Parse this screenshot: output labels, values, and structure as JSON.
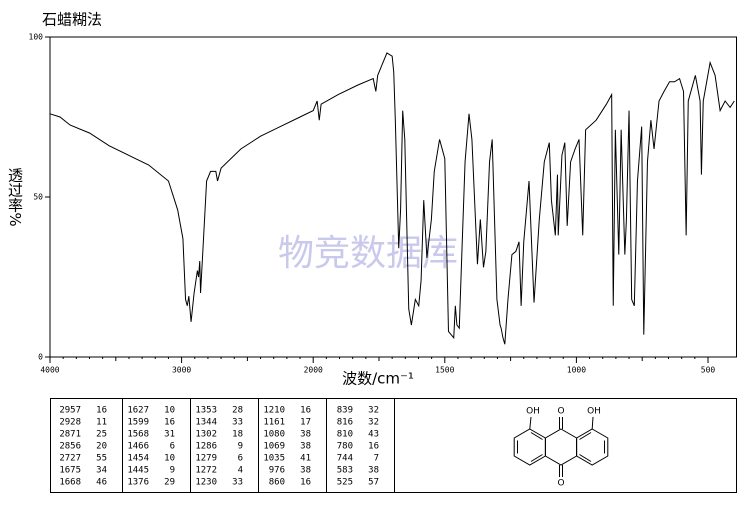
{
  "chart_data": {
    "type": "line",
    "title": "石蜡糊法",
    "x_label": "波数/cm⁻¹",
    "y_label": "透过率%",
    "watermark": "物竞数据库",
    "xlim": [
      4000,
      400
    ],
    "xticks": [
      4000,
      3000,
      2000,
      1500,
      1000,
      500
    ],
    "ylim": [
      0,
      100
    ],
    "yticks": [
      0,
      50,
      100
    ],
    "color": "#000000",
    "x": [
      4000,
      3924,
      3848,
      3700,
      3550,
      3400,
      3250,
      3100,
      3030,
      2990,
      2970,
      2957,
      2945,
      2928,
      2905,
      2880,
      2871,
      2862,
      2856,
      2840,
      2810,
      2780,
      2740,
      2727,
      2700,
      2550,
      2400,
      2250,
      2100,
      2000,
      1985,
      1977,
      1970,
      1905,
      1830,
      1772,
      1762,
      1755,
      1720,
      1700,
      1694,
      1688,
      1675,
      1668,
      1660,
      1652,
      1637,
      1627,
      1612,
      1599,
      1590,
      1580,
      1568,
      1551,
      1540,
      1520,
      1500,
      1486,
      1466,
      1460,
      1454,
      1445,
      1435,
      1423,
      1408,
      1397,
      1376,
      1365,
      1353,
      1344,
      1330,
      1320,
      1302,
      1290,
      1286,
      1279,
      1272,
      1260,
      1245,
      1230,
      1218,
      1210,
      1200,
      1180,
      1161,
      1141,
      1122,
      1103,
      1095,
      1080,
      1072,
      1069,
      1055,
      1044,
      1035,
      1022,
      1005,
      990,
      976,
      965,
      925,
      886,
      866,
      860,
      852,
      839,
      830,
      816,
      810,
      800,
      790,
      780,
      768,
      752,
      744,
      730,
      717,
      705,
      686,
      667,
      646,
      627,
      608,
      593,
      583,
      575,
      548,
      530,
      525,
      518,
      492,
      473,
      454,
      435,
      416,
      400
    ],
    "values": [
      76,
      75,
      72.5,
      70,
      66,
      63,
      60,
      55,
      46,
      37,
      18,
      16,
      19,
      11,
      20,
      27,
      25,
      30,
      20,
      32,
      55,
      58,
      58,
      55,
      59,
      65,
      69,
      72,
      75,
      77,
      80,
      74,
      79,
      82,
      85,
      87,
      83,
      88,
      95,
      94,
      89,
      74,
      34,
      46,
      77,
      68,
      15,
      10,
      18,
      16,
      24,
      49,
      31,
      43,
      58,
      68,
      62,
      8,
      6,
      16,
      10,
      9,
      33,
      61,
      76,
      68,
      29,
      43,
      28,
      33,
      61,
      68,
      18,
      10,
      9,
      6,
      4,
      18,
      32,
      33,
      36,
      16,
      36,
      55,
      17,
      43,
      61,
      67,
      49,
      38,
      57,
      38,
      63,
      67,
      41,
      61,
      65,
      68,
      38,
      71,
      74,
      79,
      82,
      16,
      71,
      32,
      71,
      32,
      43,
      77,
      18,
      16,
      55,
      72,
      7,
      61,
      74,
      65,
      80,
      83,
      86,
      86,
      87,
      83,
      38,
      80,
      88,
      80,
      57,
      80,
      92,
      88,
      77,
      80,
      78,
      80
    ]
  },
  "peak_table": {
    "columns": [
      [
        [
          "2957",
          "16"
        ],
        [
          "2928",
          "11"
        ],
        [
          "2871",
          "25"
        ],
        [
          "2856",
          "20"
        ],
        [
          "2727",
          "55"
        ],
        [
          "1675",
          "34"
        ],
        [
          "1668",
          "46"
        ]
      ],
      [
        [
          "1627",
          "10"
        ],
        [
          "1599",
          "16"
        ],
        [
          "1568",
          "31"
        ],
        [
          "1466",
          "6"
        ],
        [
          "1454",
          "10"
        ],
        [
          "1445",
          "9"
        ],
        [
          "1376",
          "29"
        ]
      ],
      [
        [
          "1353",
          "28"
        ],
        [
          "1344",
          "33"
        ],
        [
          "1302",
          "18"
        ],
        [
          "1286",
          "9"
        ],
        [
          "1279",
          "6"
        ],
        [
          "1272",
          "4"
        ],
        [
          "1230",
          "33"
        ]
      ],
      [
        [
          "1210",
          "16"
        ],
        [
          "1161",
          "17"
        ],
        [
          "1080",
          "38"
        ],
        [
          "1069",
          "38"
        ],
        [
          "1035",
          "41"
        ],
        [
          "976",
          "38"
        ],
        [
          "860",
          "16"
        ]
      ],
      [
        [
          "839",
          "32"
        ],
        [
          "816",
          "32"
        ],
        [
          "810",
          "43"
        ],
        [
          "780",
          "16"
        ],
        [
          "744",
          "7"
        ],
        [
          "583",
          "38"
        ],
        [
          "525",
          "57"
        ]
      ]
    ]
  },
  "structure": {
    "atoms": [
      "OH",
      "O",
      "OH",
      "O"
    ]
  }
}
